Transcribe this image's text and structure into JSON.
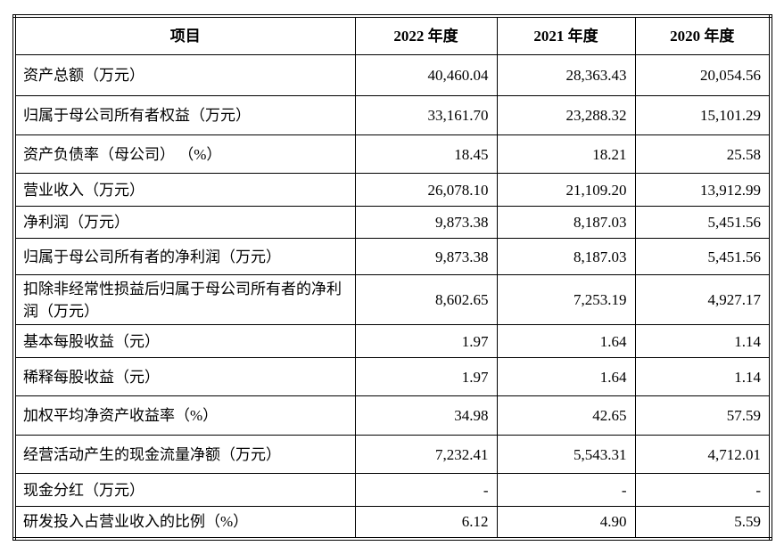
{
  "table": {
    "columns": [
      "项目",
      "2022 年度",
      "2021 年度",
      "2020 年度"
    ],
    "rows": [
      [
        "资产总额（万元）",
        "40,460.04",
        "28,363.43",
        "20,054.56"
      ],
      [
        "归属于母公司所有者权益（万元）",
        "33,161.70",
        "23,288.32",
        "15,101.29"
      ],
      [
        "资产负债率（母公司） （%）",
        "18.45",
        "18.21",
        "25.58"
      ],
      [
        "营业收入（万元）",
        "26,078.10",
        "21,109.20",
        "13,912.99"
      ],
      [
        "净利润（万元）",
        "9,873.38",
        "8,187.03",
        "5,451.56"
      ],
      [
        "归属于母公司所有者的净利润（万元）",
        "9,873.38",
        "8,187.03",
        "5,451.56"
      ],
      [
        "扣除非经常性损益后归属于母公司所有者的净利润（万元）",
        "8,602.65",
        "7,253.19",
        "4,927.17"
      ],
      [
        "基本每股收益（元）",
        "1.97",
        "1.64",
        "1.14"
      ],
      [
        "稀释每股收益（元）",
        "1.97",
        "1.64",
        "1.14"
      ],
      [
        "加权平均净资产收益率（%）",
        "34.98",
        "42.65",
        "57.59"
      ],
      [
        "经营活动产生的现金流量净额（万元）",
        "7,232.41",
        "5,543.31",
        "4,712.01"
      ],
      [
        "现金分红（万元）",
        "-",
        "-",
        "-"
      ],
      [
        "研发投入占营业收入的比例（%）",
        "6.12",
        "4.90",
        "5.59"
      ]
    ],
    "colors": {
      "border": "#000000",
      "text": "#000000",
      "background": "#ffffff"
    }
  }
}
